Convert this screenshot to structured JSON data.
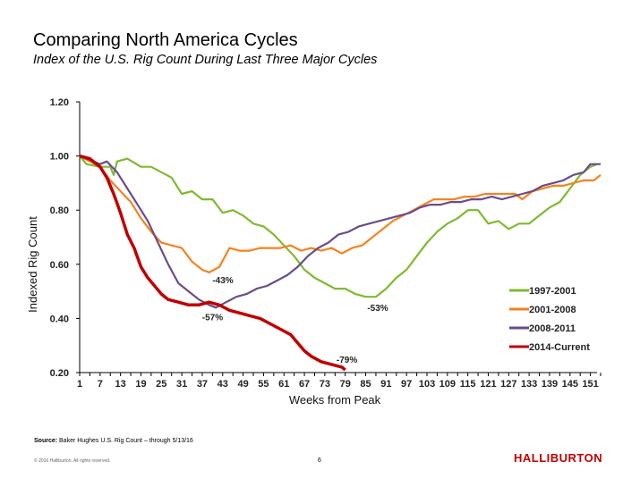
{
  "title": "Comparing North America Cycles",
  "subtitle": "Index of the U.S. Rig Count During Last Three Major Cycles",
  "footer": {
    "source_label": "Source:",
    "source_text": "Baker Hughes U.S. Rig Count – through 5/13/16",
    "copyright": "© 2016 Halliburton. All rights reserved.",
    "page_number": "6",
    "logo": "HALLIBURTON"
  },
  "chart_data": {
    "type": "line",
    "title": "Index of the U.S. Rig Count During Last Three Major Cycles",
    "xlabel": "Weeks from Peak",
    "ylabel": "Indexed Rig Count",
    "xlim": [
      1,
      155
    ],
    "ylim": [
      0.2,
      1.2
    ],
    "x_ticks": [
      "1",
      "7",
      "13",
      "19",
      "25",
      "31",
      "37",
      "43",
      "49",
      "55",
      "61",
      "67",
      "73",
      "79",
      "85",
      "91",
      "97",
      "103",
      "109",
      "115",
      "121",
      "127",
      "133",
      "139",
      "145",
      "151"
    ],
    "y_ticks": [
      "0.20",
      "0.40",
      "0.60",
      "0.80",
      "1.00",
      "1.20"
    ],
    "legend_position": "bottom-right",
    "series": [
      {
        "name": "1997-2001",
        "color": "#7fba2f",
        "x": [
          1,
          3,
          7,
          10,
          11,
          12,
          15,
          19,
          22,
          25,
          28,
          31,
          34,
          37,
          40,
          43,
          46,
          49,
          52,
          55,
          58,
          61,
          64,
          67,
          70,
          73,
          76,
          79,
          82,
          85,
          88,
          91,
          94,
          97,
          100,
          103,
          106,
          109,
          112,
          115,
          118,
          121,
          124,
          127,
          130,
          133,
          136,
          139,
          142,
          145,
          148,
          151,
          153
        ],
        "y": [
          1.0,
          0.97,
          0.96,
          0.96,
          0.93,
          0.98,
          0.99,
          0.96,
          0.96,
          0.94,
          0.92,
          0.86,
          0.87,
          0.84,
          0.84,
          0.79,
          0.8,
          0.78,
          0.75,
          0.74,
          0.71,
          0.67,
          0.63,
          0.58,
          0.55,
          0.53,
          0.51,
          0.51,
          0.49,
          0.48,
          0.48,
          0.51,
          0.55,
          0.58,
          0.63,
          0.68,
          0.72,
          0.75,
          0.77,
          0.8,
          0.8,
          0.75,
          0.76,
          0.73,
          0.75,
          0.75,
          0.78,
          0.81,
          0.83,
          0.88,
          0.93,
          0.96,
          0.97
        ]
      },
      {
        "name": "2001-2008",
        "color": "#f58220",
        "x": [
          1,
          7,
          10,
          13,
          16,
          19,
          22,
          25,
          28,
          31,
          34,
          37,
          39,
          42,
          45,
          48,
          51,
          54,
          57,
          60,
          63,
          66,
          69,
          72,
          75,
          78,
          81,
          84,
          87,
          90,
          93,
          96,
          99,
          102,
          105,
          108,
          111,
          114,
          117,
          120,
          123,
          126,
          129,
          131,
          134,
          137,
          140,
          143,
          146,
          149,
          152,
          154
        ],
        "y": [
          1.0,
          0.96,
          0.91,
          0.87,
          0.83,
          0.77,
          0.72,
          0.68,
          0.67,
          0.66,
          0.61,
          0.58,
          0.57,
          0.59,
          0.66,
          0.65,
          0.65,
          0.66,
          0.66,
          0.66,
          0.67,
          0.65,
          0.66,
          0.65,
          0.66,
          0.64,
          0.66,
          0.67,
          0.7,
          0.73,
          0.76,
          0.78,
          0.8,
          0.82,
          0.84,
          0.84,
          0.84,
          0.85,
          0.85,
          0.86,
          0.86,
          0.86,
          0.86,
          0.84,
          0.87,
          0.88,
          0.89,
          0.89,
          0.9,
          0.91,
          0.91,
          0.93
        ]
      },
      {
        "name": "2008-2011",
        "color": "#6b4c8a",
        "x": [
          1,
          7,
          9,
          12,
          15,
          18,
          21,
          24,
          27,
          30,
          33,
          36,
          39,
          41,
          44,
          47,
          50,
          53,
          56,
          59,
          62,
          65,
          68,
          71,
          74,
          77,
          80,
          83,
          86,
          89,
          92,
          95,
          98,
          101,
          104,
          107,
          110,
          113,
          116,
          119,
          122,
          125,
          128,
          131,
          134,
          137,
          140,
          143,
          146,
          149,
          151,
          154
        ],
        "y": [
          1.0,
          0.97,
          0.98,
          0.94,
          0.88,
          0.82,
          0.76,
          0.68,
          0.6,
          0.53,
          0.5,
          0.47,
          0.45,
          0.44,
          0.46,
          0.48,
          0.49,
          0.51,
          0.52,
          0.54,
          0.56,
          0.59,
          0.63,
          0.66,
          0.68,
          0.71,
          0.72,
          0.74,
          0.75,
          0.76,
          0.77,
          0.78,
          0.79,
          0.81,
          0.82,
          0.82,
          0.83,
          0.83,
          0.84,
          0.84,
          0.85,
          0.84,
          0.85,
          0.86,
          0.87,
          0.89,
          0.9,
          0.91,
          0.93,
          0.94,
          0.97,
          0.97
        ]
      },
      {
        "name": "2014-Current",
        "color": "#c00000",
        "x": [
          1,
          4,
          7,
          9,
          11,
          13,
          15,
          17,
          19,
          21,
          23,
          25,
          27,
          30,
          33,
          36,
          39,
          42,
          45,
          48,
          51,
          54,
          57,
          60,
          63,
          65,
          67,
          69,
          72,
          75,
          78,
          79
        ],
        "y": [
          1.0,
          0.99,
          0.96,
          0.92,
          0.86,
          0.79,
          0.71,
          0.66,
          0.59,
          0.55,
          0.52,
          0.49,
          0.47,
          0.46,
          0.45,
          0.45,
          0.46,
          0.45,
          0.43,
          0.42,
          0.41,
          0.4,
          0.38,
          0.36,
          0.34,
          0.31,
          0.28,
          0.26,
          0.24,
          0.23,
          0.22,
          0.21
        ]
      }
    ],
    "annotations": [
      {
        "text": "-43%",
        "x": 40,
        "y": 0.57
      },
      {
        "text": "-57%",
        "x": 38,
        "y": 0.44
      },
      {
        "text": "-53%",
        "x": 86,
        "y": 0.48
      },
      {
        "text": "-79%",
        "x": 78,
        "y": 0.21
      }
    ]
  }
}
